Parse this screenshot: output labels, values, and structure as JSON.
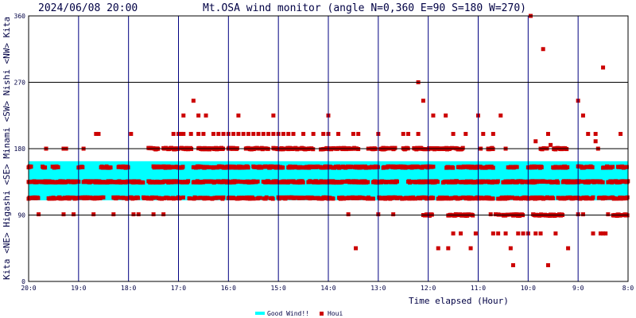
{
  "chart_data": {
    "type": "scatter",
    "timestamp": "2024/06/08 20:00",
    "title": "Mt.OSA wind monitor (angle N=0,360 E=90 S=180 W=270)",
    "xlabel": "Time elapsed (Hour)",
    "ylabel": "Kita <NE> Higashi <SE> Minami <SW> Nishi <NW> Kita",
    "ylim": [
      0,
      360
    ],
    "yticks": [
      "0",
      "90",
      "180",
      "270",
      "360"
    ],
    "x_range_hours": [
      0,
      12
    ],
    "xticks": [
      "20:0",
      "19:0",
      "18:0",
      "17:0",
      "16:0",
      "15:0",
      "14:0",
      "13:0",
      "12:0",
      "11:0",
      "10:0",
      "9:0",
      "8:0"
    ],
    "good_wind_band": [
      110,
      163
    ],
    "legend": {
      "good_wind": "Good Wind!!",
      "houi": "Houi",
      "placement": "bottom"
    },
    "colors": {
      "good_wind": "#00ffff",
      "houi": "#cc0000",
      "grid": "#000080",
      "frame": "#000000"
    },
    "bands": [
      {
        "y": 155,
        "spans": [
          [
            0.0,
            0.06
          ],
          [
            0.28,
            0.33
          ],
          [
            0.48,
            0.6
          ],
          [
            1.0,
            1.1
          ],
          [
            1.45,
            1.65
          ],
          [
            1.8,
            2.0
          ],
          [
            2.5,
            3.1
          ],
          [
            3.3,
            4.4
          ],
          [
            4.5,
            5.1
          ],
          [
            5.2,
            7.0
          ],
          [
            7.1,
            8.1
          ],
          [
            8.35,
            8.5
          ],
          [
            8.6,
            9.3
          ],
          [
            9.6,
            9.8
          ],
          [
            10.0,
            10.3
          ],
          [
            10.5,
            10.8
          ],
          [
            11.0,
            11.3
          ],
          [
            11.5,
            11.7
          ],
          [
            11.8,
            12.0
          ]
        ],
        "density": 0.86
      },
      {
        "y": 135,
        "spans": [
          [
            0.0,
            1.0
          ],
          [
            1.1,
            2.3
          ],
          [
            2.4,
            3.2
          ],
          [
            3.3,
            4.6
          ],
          [
            4.7,
            5.5
          ],
          [
            5.6,
            6.8
          ],
          [
            6.9,
            7.4
          ],
          [
            7.6,
            8.2
          ],
          [
            8.3,
            9.4
          ],
          [
            9.5,
            10.6
          ],
          [
            10.7,
            11.5
          ],
          [
            11.6,
            12.0
          ]
        ],
        "density": 0.88
      },
      {
        "y": 113,
        "spans": [
          [
            0.0,
            0.2
          ],
          [
            0.4,
            1.5
          ],
          [
            1.7,
            2.2
          ],
          [
            2.3,
            3.1
          ],
          [
            3.2,
            3.9
          ],
          [
            4.0,
            4.9
          ],
          [
            5.0,
            6.1
          ],
          [
            6.2,
            6.9
          ],
          [
            7.0,
            8.1
          ],
          [
            8.2,
            9.3
          ],
          [
            9.4,
            10.5
          ],
          [
            10.6,
            11.3
          ],
          [
            11.4,
            12.0
          ]
        ],
        "density": 0.74
      },
      {
        "y": 180,
        "spans": [
          [
            2.4,
            2.6
          ],
          [
            2.7,
            3.0
          ],
          [
            3.05,
            3.3
          ],
          [
            3.4,
            3.9
          ],
          [
            4.0,
            4.2
          ],
          [
            4.35,
            4.8
          ],
          [
            4.9,
            5.7
          ],
          [
            5.85,
            6.2
          ],
          [
            6.25,
            6.6
          ],
          [
            6.8,
            6.95
          ],
          [
            7.05,
            7.35
          ],
          [
            7.5,
            7.6
          ],
          [
            7.7,
            7.95
          ],
          [
            8.0,
            8.25
          ],
          [
            8.3,
            8.5
          ],
          [
            8.55,
            8.7
          ],
          [
            9.2,
            9.3
          ],
          [
            10.25,
            10.4
          ],
          [
            10.5,
            10.8
          ]
        ],
        "density": 0.84
      },
      {
        "y": 90,
        "spans": [
          [
            7.9,
            8.1
          ],
          [
            8.4,
            8.9
          ],
          [
            9.4,
            9.9
          ],
          [
            10.1,
            10.7
          ],
          [
            11.7,
            12.0
          ]
        ],
        "density": 0.8
      }
    ],
    "points": [
      {
        "x": 0.2,
        "y": 91
      },
      {
        "x": 0.7,
        "y": 91
      },
      {
        "x": 0.9,
        "y": 91
      },
      {
        "x": 1.3,
        "y": 91
      },
      {
        "x": 1.7,
        "y": 91
      },
      {
        "x": 2.1,
        "y": 91
      },
      {
        "x": 2.2,
        "y": 91
      },
      {
        "x": 2.5,
        "y": 91
      },
      {
        "x": 2.7,
        "y": 91
      },
      {
        "x": 6.4,
        "y": 91
      },
      {
        "x": 7.0,
        "y": 91
      },
      {
        "x": 7.3,
        "y": 91
      },
      {
        "x": 0.35,
        "y": 180
      },
      {
        "x": 0.7,
        "y": 180
      },
      {
        "x": 0.75,
        "y": 180
      },
      {
        "x": 1.1,
        "y": 180
      },
      {
        "x": 1.35,
        "y": 200
      },
      {
        "x": 1.4,
        "y": 200
      },
      {
        "x": 2.05,
        "y": 200
      },
      {
        "x": 2.9,
        "y": 200
      },
      {
        "x": 3.0,
        "y": 200
      },
      {
        "x": 3.05,
        "y": 200
      },
      {
        "x": 3.1,
        "y": 200
      },
      {
        "x": 3.25,
        "y": 200
      },
      {
        "x": 3.4,
        "y": 200
      },
      {
        "x": 3.5,
        "y": 200
      },
      {
        "x": 3.7,
        "y": 200
      },
      {
        "x": 3.8,
        "y": 200
      },
      {
        "x": 3.9,
        "y": 200
      },
      {
        "x": 4.0,
        "y": 200
      },
      {
        "x": 4.1,
        "y": 200
      },
      {
        "x": 4.2,
        "y": 200
      },
      {
        "x": 4.3,
        "y": 200
      },
      {
        "x": 4.4,
        "y": 200
      },
      {
        "x": 4.5,
        "y": 200
      },
      {
        "x": 4.6,
        "y": 200
      },
      {
        "x": 4.7,
        "y": 200
      },
      {
        "x": 4.8,
        "y": 200
      },
      {
        "x": 4.9,
        "y": 200
      },
      {
        "x": 5.0,
        "y": 200
      },
      {
        "x": 5.1,
        "y": 200
      },
      {
        "x": 5.2,
        "y": 200
      },
      {
        "x": 5.3,
        "y": 200
      },
      {
        "x": 5.5,
        "y": 200
      },
      {
        "x": 5.7,
        "y": 200
      },
      {
        "x": 5.9,
        "y": 200
      },
      {
        "x": 6.0,
        "y": 200
      },
      {
        "x": 6.2,
        "y": 200
      },
      {
        "x": 6.5,
        "y": 200
      },
      {
        "x": 6.6,
        "y": 200
      },
      {
        "x": 7.0,
        "y": 200
      },
      {
        "x": 7.5,
        "y": 200
      },
      {
        "x": 7.6,
        "y": 200
      },
      {
        "x": 7.8,
        "y": 200
      },
      {
        "x": 8.5,
        "y": 200
      },
      {
        "x": 8.75,
        "y": 200
      },
      {
        "x": 9.1,
        "y": 200
      },
      {
        "x": 9.3,
        "y": 200
      },
      {
        "x": 10.4,
        "y": 200
      },
      {
        "x": 11.2,
        "y": 200
      },
      {
        "x": 11.35,
        "y": 200
      },
      {
        "x": 11.85,
        "y": 200
      },
      {
        "x": 3.1,
        "y": 225
      },
      {
        "x": 3.4,
        "y": 225
      },
      {
        "x": 3.55,
        "y": 225
      },
      {
        "x": 4.2,
        "y": 225
      },
      {
        "x": 4.9,
        "y": 225
      },
      {
        "x": 6.0,
        "y": 225
      },
      {
        "x": 8.35,
        "y": 225
      },
      {
        "x": 8.1,
        "y": 225
      },
      {
        "x": 9.0,
        "y": 225
      },
      {
        "x": 9.45,
        "y": 225
      },
      {
        "x": 11.1,
        "y": 225
      },
      {
        "x": 3.3,
        "y": 245
      },
      {
        "x": 7.9,
        "y": 245
      },
      {
        "x": 11.0,
        "y": 245
      },
      {
        "x": 7.8,
        "y": 270
      },
      {
        "x": 11.5,
        "y": 290
      },
      {
        "x": 10.3,
        "y": 315
      },
      {
        "x": 10.05,
        "y": 360
      },
      {
        "x": 10.15,
        "y": 190
      },
      {
        "x": 10.45,
        "y": 185
      },
      {
        "x": 11.35,
        "y": 190
      },
      {
        "x": 8.1,
        "y": 180
      },
      {
        "x": 8.25,
        "y": 180
      },
      {
        "x": 8.3,
        "y": 180
      },
      {
        "x": 9.05,
        "y": 180
      },
      {
        "x": 9.2,
        "y": 180
      },
      {
        "x": 9.55,
        "y": 180
      },
      {
        "x": 10.65,
        "y": 180
      },
      {
        "x": 10.7,
        "y": 180
      },
      {
        "x": 11.4,
        "y": 180
      },
      {
        "x": 6.55,
        "y": 45
      },
      {
        "x": 8.2,
        "y": 45
      },
      {
        "x": 8.4,
        "y": 45
      },
      {
        "x": 8.85,
        "y": 45
      },
      {
        "x": 9.65,
        "y": 45
      },
      {
        "x": 10.8,
        "y": 45
      },
      {
        "x": 9.7,
        "y": 22
      },
      {
        "x": 10.4,
        "y": 22
      },
      {
        "x": 8.5,
        "y": 65
      },
      {
        "x": 8.65,
        "y": 65
      },
      {
        "x": 8.95,
        "y": 65
      },
      {
        "x": 9.4,
        "y": 65
      },
      {
        "x": 9.3,
        "y": 65
      },
      {
        "x": 9.55,
        "y": 65
      },
      {
        "x": 9.8,
        "y": 65
      },
      {
        "x": 9.9,
        "y": 65
      },
      {
        "x": 10.15,
        "y": 65
      },
      {
        "x": 10.25,
        "y": 65
      },
      {
        "x": 10.55,
        "y": 65
      },
      {
        "x": 11.5,
        "y": 65
      },
      {
        "x": 11.55,
        "y": 65
      },
      {
        "x": 11.3,
        "y": 65
      },
      {
        "x": 11.45,
        "y": 65
      },
      {
        "x": 10.0,
        "y": 65
      },
      {
        "x": 8.55,
        "y": 91
      },
      {
        "x": 9.25,
        "y": 91
      },
      {
        "x": 9.35,
        "y": 91
      },
      {
        "x": 11.1,
        "y": 91
      },
      {
        "x": 11.0,
        "y": 91
      },
      {
        "x": 11.6,
        "y": 91
      }
    ]
  }
}
